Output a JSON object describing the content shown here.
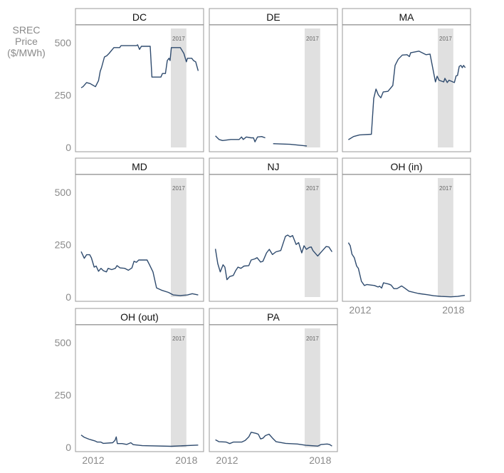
{
  "chart_data": {
    "type": "line",
    "ylabel": "SREC Price ($/MWh)",
    "ylim": [
      0,
      575
    ],
    "yticks": [
      "0",
      "250",
      "500"
    ],
    "ytick_values": [
      0,
      250,
      500
    ],
    "xlim": [
      2011.0,
      2018.95
    ],
    "xticks": [
      "2012",
      "2018"
    ],
    "xtick_values": [
      2012,
      2018
    ],
    "shaded_region": {
      "from": 2017,
      "to": 2018,
      "label": "2017",
      "color": "#e0e0e0"
    },
    "line_color": "#2f4b6e",
    "grid": false,
    "facets": [
      {
        "name": "DC",
        "x": [
          2011.22,
          2011.34,
          2011.57,
          2011.8,
          2012.14,
          2012.34,
          2012.45,
          2012.53,
          2012.72,
          2012.87,
          2013.02,
          2013.33,
          2013.7,
          2013.79,
          2014.78,
          2014.86,
          2014.98,
          2015.1,
          2015.67,
          2015.78,
          2016.36,
          2016.46,
          2016.65,
          2016.77,
          2016.88,
          2016.95,
          2017.03,
          2017.61,
          2017.84,
          2018.0,
          2018.07,
          2018.35,
          2018.46,
          2018.6,
          2018.76
        ],
        "y": [
          285,
          290,
          310,
          305,
          290,
          319,
          364,
          381,
          432,
          438,
          449,
          477,
          477,
          486,
          486,
          490,
          468,
          483,
          483,
          336,
          336,
          353,
          353,
          415,
          426,
          415,
          477,
          477,
          449,
          409,
          426,
          426,
          415,
          409,
          366
        ]
      },
      {
        "name": "DE",
        "segments": [
          {
            "x": [
              2011.25,
              2011.48,
              2011.71,
              2012.24,
              2012.78,
              2012.93,
              2013.04,
              2013.24,
              2013.55,
              2013.7,
              2013.8,
              2013.96,
              2014.23,
              2014.46
            ],
            "y": [
              55,
              38,
              33,
              38,
              38,
              50,
              38,
              50,
              46,
              46,
              27,
              50,
              52,
              46
            ]
          },
          {
            "x": [
              2014.97,
              2016.07,
              2017.14
            ],
            "y": [
              18,
              15,
              7
            ]
          }
        ]
      },
      {
        "name": "MA",
        "x": [
          2011.24,
          2011.57,
          2011.95,
          2012.72,
          2012.87,
          2013.02,
          2013.17,
          2013.33,
          2013.48,
          2013.79,
          2014.1,
          2014.25,
          2014.45,
          2014.71,
          2015.02,
          2015.17,
          2015.25,
          2015.78,
          2016.24,
          2016.5,
          2016.85,
          2016.96,
          2017.08,
          2017.38,
          2017.46,
          2017.61,
          2017.72,
          2018.07,
          2018.18,
          2018.27,
          2018.38,
          2018.49,
          2018.58,
          2018.66,
          2018.77
        ],
        "y": [
          37,
          52,
          60,
          63,
          234,
          279,
          251,
          237,
          265,
          268,
          296,
          392,
          421,
          441,
          443,
          434,
          452,
          460,
          443,
          446,
          313,
          340,
          321,
          313,
          330,
          310,
          321,
          310,
          342,
          344,
          387,
          392,
          381,
          392,
          381
        ]
      },
      {
        "name": "MD",
        "x": [
          2011.22,
          2011.42,
          2011.57,
          2011.77,
          2011.88,
          2012.06,
          2012.19,
          2012.34,
          2012.5,
          2012.65,
          2012.85,
          2012.96,
          2013.19,
          2013.42,
          2013.53,
          2013.73,
          2014.03,
          2014.26,
          2014.49,
          2014.63,
          2014.78,
          2014.93,
          2015.47,
          2015.62,
          2015.85,
          2016.08,
          2016.39,
          2016.85,
          2017.16,
          2017.61,
          2018.07,
          2018.38,
          2018.76
        ],
        "y": [
          217,
          185,
          202,
          202,
          187,
          143,
          148,
          123,
          137,
          126,
          120,
          137,
          131,
          137,
          150,
          139,
          137,
          128,
          139,
          171,
          166,
          177,
          177,
          155,
          120,
          44,
          33,
          22,
          10,
          7,
          10,
          16,
          10
        ]
      },
      {
        "name": "NJ",
        "x": [
          2011.25,
          2011.4,
          2011.56,
          2011.74,
          2011.86,
          2011.99,
          2012.17,
          2012.4,
          2012.55,
          2012.7,
          2012.89,
          2013.09,
          2013.4,
          2013.55,
          2013.78,
          2013.93,
          2014.16,
          2014.31,
          2014.54,
          2014.72,
          2014.92,
          2015.15,
          2015.46,
          2015.76,
          2015.91,
          2016.07,
          2016.22,
          2016.45,
          2016.61,
          2016.81,
          2016.96,
          2017.11,
          2017.3,
          2017.42,
          2017.53,
          2017.84,
          2018.15,
          2018.38,
          2018.56,
          2018.76
        ],
        "y": [
          230,
          160,
          120,
          154,
          143,
          83,
          98,
          103,
          126,
          143,
          137,
          148,
          150,
          177,
          182,
          188,
          167,
          171,
          211,
          228,
          203,
          216,
          222,
          290,
          296,
          287,
          294,
          251,
          260,
          211,
          245,
          228,
          237,
          239,
          222,
          196,
          222,
          241,
          239,
          216
        ]
      },
      {
        "name": "OH (in)",
        "x": [
          2011.24,
          2011.36,
          2011.47,
          2011.62,
          2011.77,
          2011.88,
          2012.08,
          2012.27,
          2012.43,
          2012.92,
          2013.15,
          2013.25,
          2013.38,
          2013.5,
          2013.84,
          2013.99,
          2014.17,
          2014.37,
          2014.67,
          2014.83,
          2015.14,
          2015.75,
          2016.36,
          2016.75,
          2017.21,
          2017.82,
          2018.28,
          2018.74
        ],
        "y": [
          260,
          245,
          205,
          188,
          148,
          137,
          75,
          55,
          60,
          55,
          48,
          52,
          43,
          68,
          62,
          57,
          40,
          40,
          53,
          45,
          28,
          17,
          11,
          6,
          3,
          1,
          3,
          8
        ]
      },
      {
        "name": "OH (out)",
        "x": [
          2011.22,
          2011.42,
          2011.72,
          2012.1,
          2012.26,
          2012.49,
          2012.64,
          2013.25,
          2013.4,
          2013.48,
          2013.55,
          2013.86,
          2014.16,
          2014.42,
          2014.58,
          2015.16,
          2017.0,
          2018.76
        ],
        "y": [
          59,
          48,
          39,
          31,
          25,
          25,
          19,
          22,
          33,
          50,
          18,
          18,
          14,
          22,
          13,
          8,
          5,
          11
        ]
      },
      {
        "name": "PA",
        "x": [
          2011.25,
          2011.48,
          2011.94,
          2012.17,
          2012.4,
          2012.94,
          2013.17,
          2013.4,
          2013.55,
          2013.86,
          2014.01,
          2014.16,
          2014.31,
          2014.47,
          2014.7,
          2014.93,
          2015.16,
          2015.77,
          2016.53,
          2017.07,
          2017.84,
          2018.07,
          2018.45,
          2018.6,
          2018.76
        ],
        "y": [
          36,
          27,
          25,
          18,
          25,
          25,
          33,
          50,
          72,
          67,
          63,
          40,
          44,
          56,
          63,
          44,
          27,
          19,
          16,
          10,
          6,
          14,
          16,
          14,
          6
        ]
      }
    ]
  }
}
